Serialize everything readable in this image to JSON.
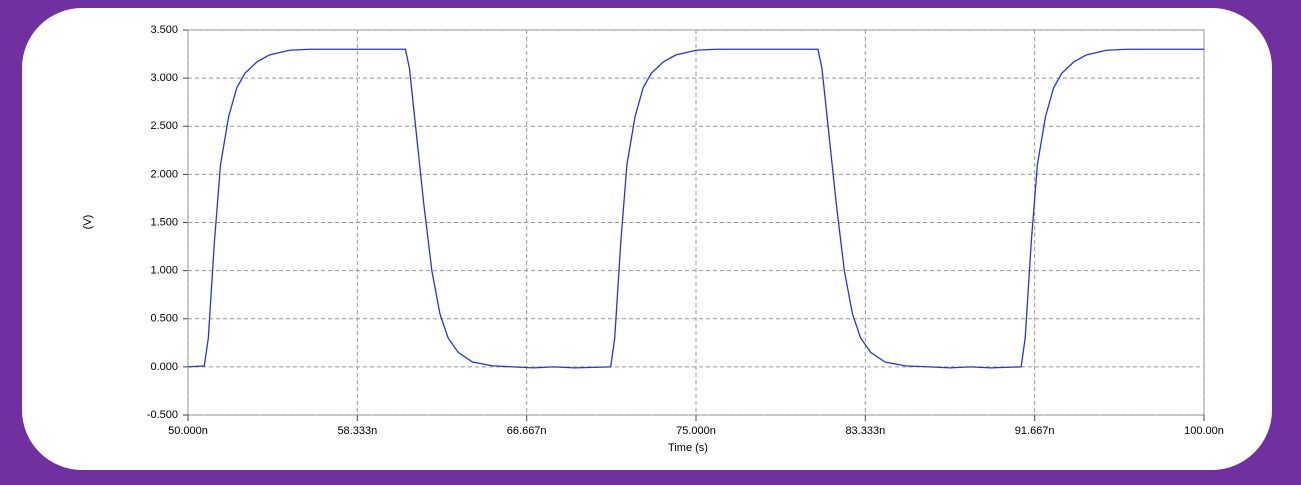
{
  "chart_data": {
    "type": "line",
    "x_label": "Time (s)",
    "y_label": "(V)",
    "xlim": [
      50,
      100
    ],
    "xticks": [
      {
        "value": 50,
        "label": "50.000n"
      },
      {
        "value": 58.333,
        "label": "58.333n"
      },
      {
        "value": 66.667,
        "label": "66.667n"
      },
      {
        "value": 75,
        "label": "75.000n"
      },
      {
        "value": 83.333,
        "label": "83.333n"
      },
      {
        "value": 91.667,
        "label": "91.667n"
      },
      {
        "value": 100,
        "label": "100.00n"
      }
    ],
    "ylim": [
      -0.5,
      3.5
    ],
    "yticks": [
      {
        "value": -0.5,
        "label": "-0.500"
      },
      {
        "value": 0,
        "label": "0.000"
      },
      {
        "value": 0.5,
        "label": "0.500"
      },
      {
        "value": 1,
        "label": "1.000"
      },
      {
        "value": 1.5,
        "label": "1.500"
      },
      {
        "value": 2,
        "label": "2.000"
      },
      {
        "value": 2.5,
        "label": "2.500"
      },
      {
        "value": 3,
        "label": "3.000"
      },
      {
        "value": 3.5,
        "label": "3.500"
      }
    ],
    "grid": true,
    "x": [
      50.0,
      50.8,
      51.0,
      51.3,
      51.6,
      52.0,
      52.4,
      52.8,
      53.4,
      54.0,
      55.0,
      56.0,
      60.7,
      60.9,
      61.2,
      61.6,
      62.0,
      62.4,
      62.8,
      63.3,
      64.0,
      65.0,
      66.0,
      67.0,
      68.0,
      69.0,
      70.8,
      71.0,
      71.3,
      71.6,
      72.0,
      72.4,
      72.8,
      73.4,
      74.0,
      75.0,
      76.0,
      81.0,
      81.2,
      81.5,
      81.9,
      82.3,
      82.7,
      83.1,
      83.6,
      84.3,
      85.3,
      86.5,
      87.5,
      88.5,
      89.5,
      91.0,
      91.2,
      91.5,
      91.8,
      92.2,
      92.6,
      93.0,
      93.6,
      94.2,
      95.2,
      96.2,
      100
    ],
    "series": [
      {
        "color": "#2436d8",
        "values": [
          0,
          0.01,
          0.3,
          1.3,
          2.1,
          2.6,
          2.9,
          3.05,
          3.17,
          3.24,
          3.29,
          3.3,
          3.3,
          3.1,
          2.5,
          1.7,
          1.0,
          0.55,
          0.3,
          0.15,
          0.05,
          0.01,
          0.0,
          -0.01,
          0.0,
          -0.01,
          0.0,
          0.3,
          1.3,
          2.1,
          2.6,
          2.9,
          3.05,
          3.17,
          3.24,
          3.29,
          3.3,
          3.3,
          3.1,
          2.5,
          1.7,
          1.0,
          0.55,
          0.3,
          0.15,
          0.05,
          0.01,
          0.0,
          -0.01,
          0.0,
          -0.01,
          0.0,
          0.3,
          1.3,
          2.1,
          2.6,
          2.9,
          3.05,
          3.17,
          3.24,
          3.29,
          3.3,
          3.3
        ]
      }
    ]
  }
}
